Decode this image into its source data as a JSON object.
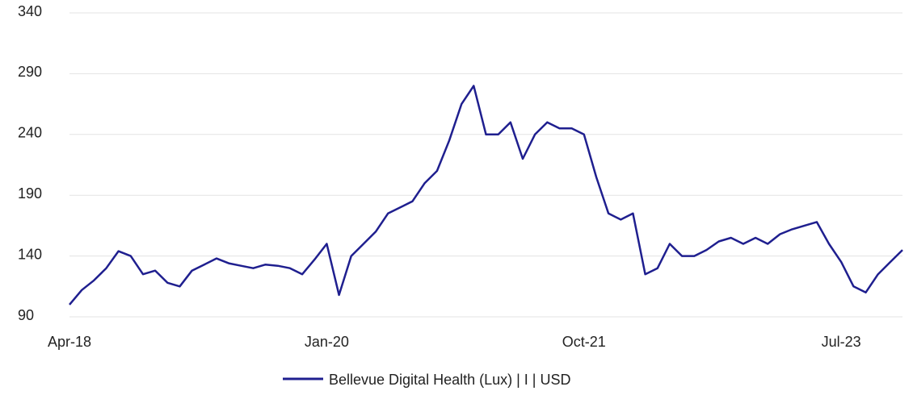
{
  "chart_data": {
    "type": "line",
    "x": [
      "Apr-18",
      "May-18",
      "Jun-18",
      "Jul-18",
      "Aug-18",
      "Sep-18",
      "Oct-18",
      "Nov-18",
      "Dec-18",
      "Jan-19",
      "Feb-19",
      "Mar-19",
      "Apr-19",
      "May-19",
      "Jun-19",
      "Jul-19",
      "Aug-19",
      "Sep-19",
      "Oct-19",
      "Nov-19",
      "Dec-19",
      "Jan-20",
      "Feb-20",
      "Mar-20",
      "Apr-20",
      "May-20",
      "Jun-20",
      "Jul-20",
      "Aug-20",
      "Sep-20",
      "Oct-20",
      "Nov-20",
      "Dec-20",
      "Jan-21",
      "Feb-21",
      "Mar-21",
      "Apr-21",
      "May-21",
      "Jun-21",
      "Jul-21",
      "Aug-21",
      "Sep-21",
      "Oct-21",
      "Nov-21",
      "Dec-21",
      "Jan-22",
      "Feb-22",
      "Mar-22",
      "Apr-22",
      "May-22",
      "Jun-22",
      "Jul-22",
      "Aug-22",
      "Sep-22",
      "Oct-22",
      "Nov-22",
      "Dec-22",
      "Jan-23",
      "Feb-23",
      "Mar-23",
      "Apr-23",
      "May-23",
      "Jun-23",
      "Jul-23",
      "Aug-23",
      "Sep-23",
      "Oct-23",
      "Nov-23",
      "Dec-23"
    ],
    "series": [
      {
        "name": "Bellevue Digital Health (Lux) | I | USD",
        "color": "#1f1f8f",
        "values": [
          100,
          112,
          120,
          130,
          144,
          140,
          125,
          128,
          118,
          115,
          128,
          133,
          138,
          134,
          132,
          130,
          133,
          132,
          130,
          125,
          137,
          150,
          108,
          140,
          150,
          160,
          175,
          180,
          185,
          200,
          210,
          235,
          265,
          280,
          240,
          240,
          250,
          220,
          240,
          250,
          245,
          245,
          240,
          205,
          175,
          170,
          175,
          125,
          130,
          150,
          140,
          140,
          145,
          152,
          155,
          150,
          155,
          150,
          158,
          162,
          165,
          168,
          150,
          135,
          115,
          110,
          125,
          135,
          145
        ]
      }
    ],
    "ylim": [
      90,
      340
    ],
    "yticks": [
      90,
      140,
      190,
      240,
      290,
      340
    ],
    "xticks": [
      "Apr-18",
      "Jan-20",
      "Oct-21",
      "Jul-23"
    ],
    "grid": true,
    "legend": "bottom"
  }
}
